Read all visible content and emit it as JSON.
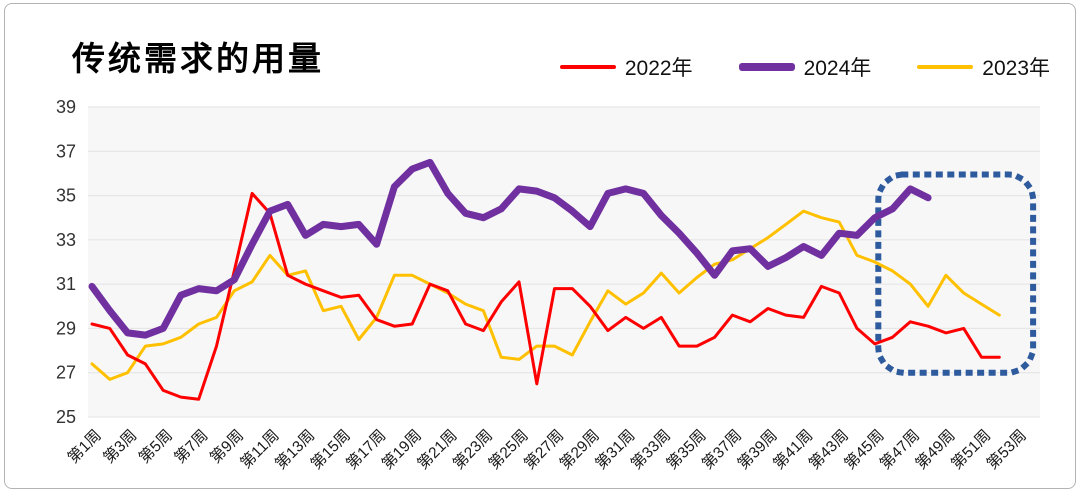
{
  "card": {
    "background": "#ffffff",
    "border_color": "#b3b3b3"
  },
  "header": {
    "title": "传统需求的用量"
  },
  "legend": {
    "items": [
      {
        "label": "2022年",
        "color": "#FF0000",
        "thickness": 4
      },
      {
        "label": "2024年",
        "color": "#7030A0",
        "thickness": 8
      },
      {
        "label": "2023年",
        "color": "#FFC000",
        "thickness": 4
      }
    ]
  },
  "chart_data": {
    "type": "line",
    "title": "传统需求的用量",
    "xlabel": "",
    "ylabel": "",
    "x_unit": "week",
    "x_tick_weeks": [
      1,
      3,
      5,
      7,
      9,
      11,
      13,
      15,
      17,
      19,
      21,
      23,
      25,
      27,
      29,
      31,
      33,
      35,
      37,
      39,
      41,
      43,
      45,
      47,
      49,
      51,
      53
    ],
    "x_tick_labels": [
      "第1周",
      "第3周",
      "第5周",
      "第7周",
      "第9周",
      "第11周",
      "第13周",
      "第15周",
      "第17周",
      "第19周",
      "第21周",
      "第23周",
      "第25周",
      "第27周",
      "第29周",
      "第31周",
      "第33周",
      "第35周",
      "第37周",
      "第39周",
      "第41周",
      "第43周",
      "第45周",
      "第47周",
      "第49周",
      "第51周",
      "第53周"
    ],
    "ylim": [
      25,
      39
    ],
    "y_ticks": [
      25,
      27,
      29,
      31,
      33,
      35,
      37,
      39
    ],
    "grid": true,
    "legend_position": "top-right",
    "plot_background": "#f7f7f7",
    "gridline_color": "#e3e3e3",
    "series": [
      {
        "key": "2022",
        "name": "2022年",
        "color": "#FF0000",
        "line_width": 3,
        "start_week": 1,
        "weekly_values": [
          29.2,
          29.0,
          27.8,
          27.4,
          26.2,
          25.9,
          25.8,
          28.2,
          31.6,
          35.1,
          34.2,
          31.4,
          31.0,
          30.7,
          30.4,
          30.5,
          29.4,
          29.1,
          29.2,
          31.0,
          30.7,
          29.2,
          28.9,
          30.2,
          31.1,
          26.5,
          30.8,
          30.8,
          30.0,
          28.9,
          29.5,
          29.0,
          29.5,
          28.2,
          28.2,
          28.6,
          29.6,
          29.3,
          29.9,
          29.6,
          29.5,
          30.9,
          30.6,
          29.0,
          28.3,
          28.6,
          29.3,
          29.1,
          28.8,
          29.0,
          27.7,
          27.7
        ]
      },
      {
        "key": "2024",
        "name": "2024年",
        "color": "#7030A0",
        "line_width": 7,
        "start_week": 1,
        "weekly_values": [
          30.9,
          29.8,
          28.8,
          28.7,
          29.0,
          30.5,
          30.8,
          30.7,
          31.2,
          32.8,
          34.3,
          34.6,
          33.2,
          33.7,
          33.6,
          33.7,
          32.8,
          35.4,
          36.2,
          36.5,
          35.1,
          34.2,
          34.0,
          34.4,
          35.3,
          35.2,
          34.9,
          34.3,
          33.6,
          35.1,
          35.3,
          35.1,
          34.1,
          33.3,
          32.4,
          31.4,
          32.5,
          32.6,
          31.8,
          32.2,
          32.7,
          32.3,
          33.3,
          33.2,
          34.0,
          34.4,
          35.3,
          34.9
        ]
      },
      {
        "key": "2023",
        "name": "2023年",
        "color": "#FFC000",
        "line_width": 3,
        "start_week": 1,
        "weekly_values": [
          27.4,
          26.7,
          27.0,
          28.2,
          28.3,
          28.6,
          29.2,
          29.5,
          30.7,
          31.1,
          32.3,
          31.4,
          31.6,
          29.8,
          30.0,
          28.5,
          29.5,
          31.4,
          31.4,
          31.0,
          30.6,
          30.1,
          29.8,
          27.7,
          27.6,
          28.2,
          28.2,
          27.8,
          29.3,
          30.7,
          30.1,
          30.6,
          31.5,
          30.6,
          31.3,
          31.9,
          32.1,
          32.6,
          33.1,
          33.7,
          34.3,
          34.0,
          33.8,
          32.3,
          32.0,
          31.6,
          31.0,
          30.0,
          31.4,
          30.6,
          30.1,
          29.6
        ]
      }
    ],
    "highlight_box": {
      "week_from": 45.2,
      "week_to": 53.9,
      "value_from": 27.0,
      "value_to": 35.95,
      "color": "#2E5A9E",
      "style": "dotted-rounded-rect"
    }
  }
}
